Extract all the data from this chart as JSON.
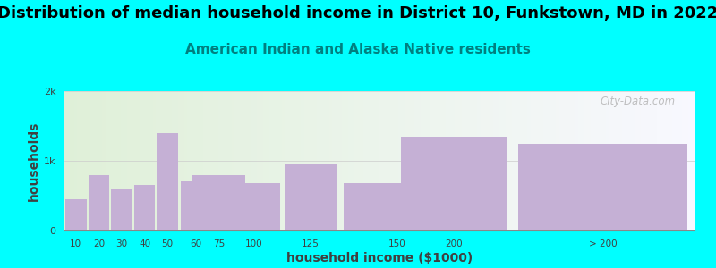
{
  "title": "Distribution of median household income in District 10, Funkstown, MD in 2022",
  "subtitle": "American Indian and Alaska Native residents",
  "xlabel": "household income ($1000)",
  "ylabel": "households",
  "categories": [
    "10",
    "20",
    "30",
    "40",
    "50",
    "60",
    "75",
    "100",
    "125",
    "150",
    "200",
    "> 200"
  ],
  "widths": [
    10,
    10,
    10,
    10,
    10,
    15,
    25,
    25,
    25,
    50,
    50,
    80
  ],
  "lefts": [
    5,
    15,
    25,
    35,
    45,
    55,
    60,
    75,
    100,
    125,
    150,
    200
  ],
  "values": [
    450,
    800,
    590,
    650,
    1400,
    700,
    800,
    680,
    950,
    680,
    1350,
    1250
  ],
  "bar_color": "#c5b0d5",
  "background_outer": "#00ffff",
  "background_inner_left": "#dff0d8",
  "background_inner_right": "#f8f8ff",
  "ytick_labels": [
    "0",
    "1k",
    "2k"
  ],
  "ytick_values": [
    0,
    1000,
    2000
  ],
  "ylim": [
    0,
    2000
  ],
  "xlim": [
    5,
    280
  ],
  "title_fontsize": 13,
  "subtitle_fontsize": 11,
  "subtitle_color": "#008080",
  "axis_label_color": "#404040",
  "tick_color": "#404040",
  "watermark": "City-Data.com"
}
